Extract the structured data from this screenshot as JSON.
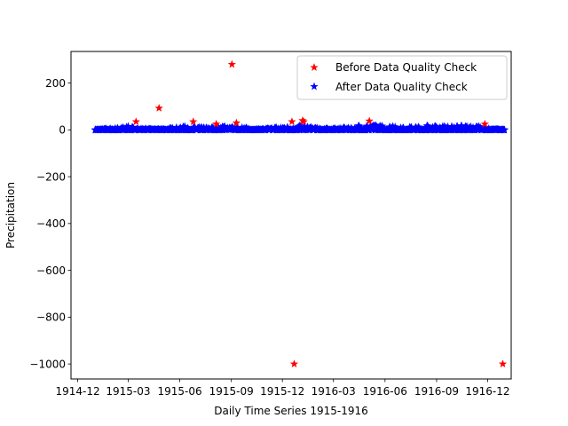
{
  "chart_data": {
    "type": "scatter",
    "title": "",
    "xlabel": "Daily Time Series 1915-1916",
    "ylabel": "Precipitation",
    "xlim": [
      "1914-11-19",
      "1917-01-12"
    ],
    "ylim": [
      -1064,
      335
    ],
    "x_ticks": [
      {
        "date": "1914-12-01",
        "label": "1914-12"
      },
      {
        "date": "1915-03-01",
        "label": "1915-03"
      },
      {
        "date": "1915-06-01",
        "label": "1915-06"
      },
      {
        "date": "1915-09-01",
        "label": "1915-09"
      },
      {
        "date": "1915-12-01",
        "label": "1915-12"
      },
      {
        "date": "1916-03-01",
        "label": "1916-03"
      },
      {
        "date": "1916-06-01",
        "label": "1916-06"
      },
      {
        "date": "1916-09-01",
        "label": "1916-09"
      },
      {
        "date": "1916-12-01",
        "label": "1916-12"
      }
    ],
    "y_ticks": [
      200,
      0,
      -200,
      -400,
      -600,
      -800,
      -1000
    ],
    "grid": false,
    "legend": {
      "position": "top-right"
    },
    "marker": "star",
    "date_range": {
      "start": "1915-01-01",
      "end": "1916-12-31"
    },
    "series": [
      {
        "name": "Before Data Quality Check",
        "color": "#ff0000",
        "points": [
          {
            "x": "1915-03-15",
            "y": 35
          },
          {
            "x": "1915-04-25",
            "y": 93
          },
          {
            "x": "1915-06-25",
            "y": 35
          },
          {
            "x": "1915-08-05",
            "y": 25
          },
          {
            "x": "1915-09-02",
            "y": 280
          },
          {
            "x": "1915-09-10",
            "y": 30
          },
          {
            "x": "1915-12-18",
            "y": 35
          },
          {
            "x": "1915-12-22",
            "y": -1000
          },
          {
            "x": "1916-01-06",
            "y": 40
          },
          {
            "x": "1916-01-08",
            "y": 35
          },
          {
            "x": "1916-05-04",
            "y": 38
          },
          {
            "x": "1916-11-26",
            "y": 25
          },
          {
            "x": "1916-12-28",
            "y": -1000
          }
        ]
      },
      {
        "name": "After Data Quality Check",
        "color": "#0000ff",
        "points": [
          {
            "x": "1915-01-01",
            "y": 0
          },
          {
            "x": "1915-01-20",
            "y": 5
          },
          {
            "x": "1915-02-10",
            "y": 8
          },
          {
            "x": "1915-03-01",
            "y": 15
          },
          {
            "x": "1915-04-01",
            "y": 5
          },
          {
            "x": "1915-05-01",
            "y": 3
          },
          {
            "x": "1915-06-10",
            "y": 15
          },
          {
            "x": "1915-07-10",
            "y": 10
          },
          {
            "x": "1915-08-20",
            "y": 15
          },
          {
            "x": "1915-09-20",
            "y": 10
          },
          {
            "x": "1915-10-20",
            "y": 3
          },
          {
            "x": "1915-11-20",
            "y": 10
          },
          {
            "x": "1916-01-01",
            "y": 18
          },
          {
            "x": "1916-02-01",
            "y": 8
          },
          {
            "x": "1916-03-01",
            "y": 5
          },
          {
            "x": "1916-04-15",
            "y": 18
          },
          {
            "x": "1916-05-15",
            "y": 20
          },
          {
            "x": "1916-06-15",
            "y": 15
          },
          {
            "x": "1916-07-15",
            "y": 12
          },
          {
            "x": "1916-08-15",
            "y": 18
          },
          {
            "x": "1916-09-15",
            "y": 15
          },
          {
            "x": "1916-10-15",
            "y": 18
          },
          {
            "x": "1916-11-15",
            "y": 15
          },
          {
            "x": "1916-12-31",
            "y": 0
          }
        ]
      }
    ]
  }
}
